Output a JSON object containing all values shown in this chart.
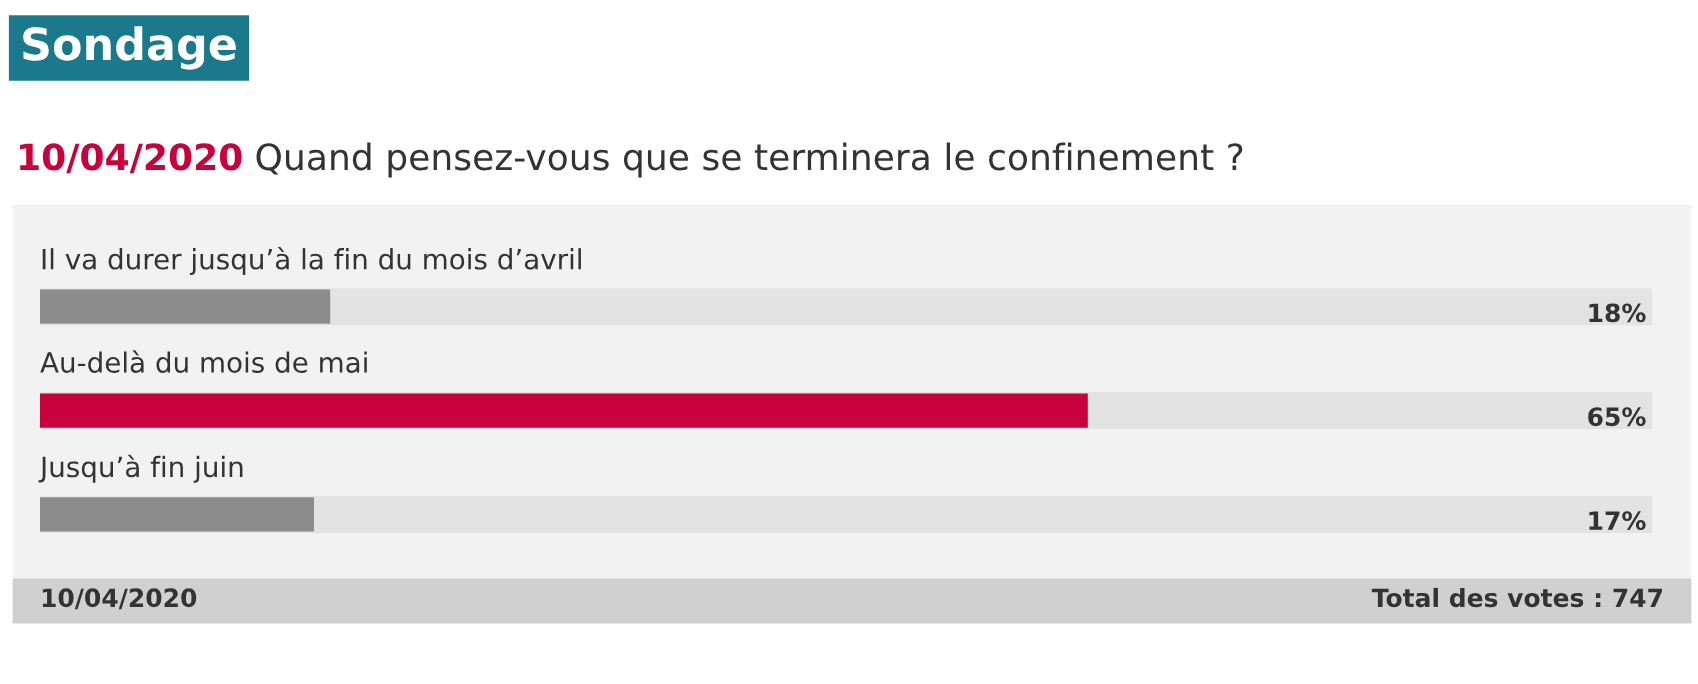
{
  "chart_data": {
    "type": "bar",
    "orientation": "horizontal",
    "title": "Sondage",
    "subtitle": "Quand pensez-vous que se terminera le confinement ?",
    "annotations": [
      "10/04/2020",
      "10/04/2020",
      "Total des votes : 747"
    ],
    "categories": [
      "Il va durer jusqu’à la fin du mois d’avril",
      "Au-delà du mois de mai",
      "Jusqu’à fin juin"
    ],
    "values": [
      18,
      65,
      17
    ],
    "colors": [
      "#8c8c8c",
      "#c8003c",
      "#8c8c8c"
    ],
    "value_labels": [
      "18%",
      "65%",
      "17%"
    ],
    "xlim": [
      0,
      100
    ]
  }
}
